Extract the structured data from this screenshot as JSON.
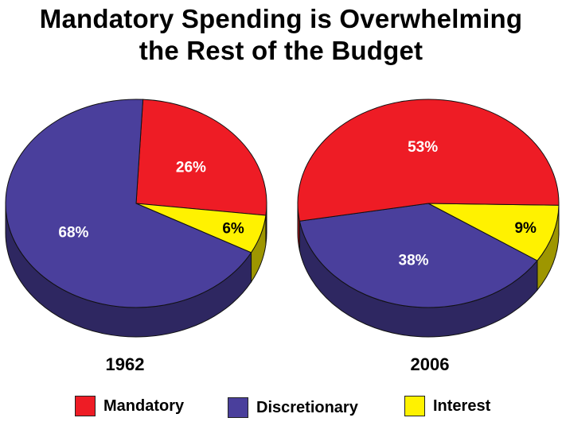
{
  "title_lines": [
    "Mandatory Spending is Overwhelming",
    "the Rest of the Budget"
  ],
  "chart_data": {
    "type": "pie",
    "categories": [
      "Mandatory",
      "Discretionary",
      "Interest"
    ],
    "colors": {
      "Mandatory": "#ee1c25",
      "Discretionary": "#4a3f9c",
      "Interest": "#fff200"
    },
    "pies": [
      {
        "year": "1962",
        "values": [
          26,
          68,
          6
        ],
        "labels": [
          "26%",
          "68%",
          "6%"
        ]
      },
      {
        "year": "2006",
        "values": [
          53,
          38,
          9
        ],
        "labels": [
          "53%",
          "38%",
          "9%"
        ]
      }
    ],
    "legend_position": "bottom"
  },
  "legend": [
    {
      "label": "Mandatory",
      "color": "#ee1c25"
    },
    {
      "label": "Discretionary",
      "color": "#4a3f9c"
    },
    {
      "label": "Interest",
      "color": "#fff200"
    }
  ]
}
